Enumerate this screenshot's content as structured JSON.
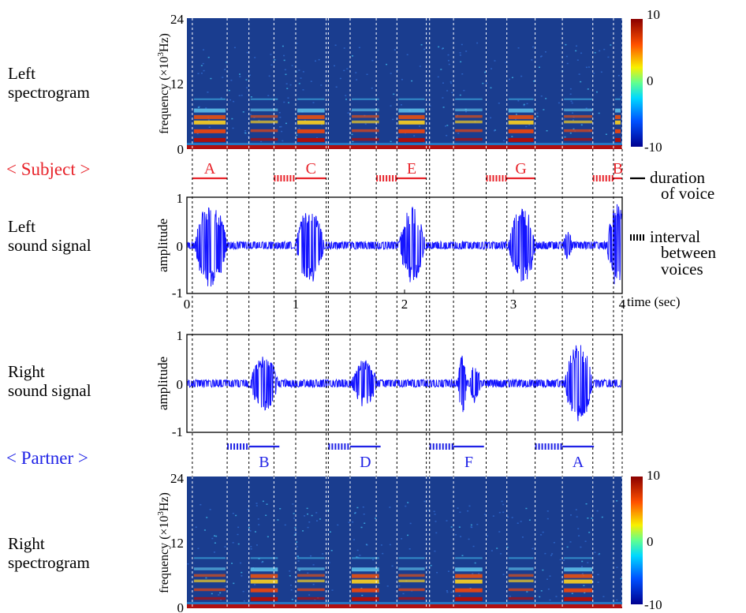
{
  "labels": {
    "left_spectrogram": [
      "Left",
      "spectrogram"
    ],
    "subject": "< Subject >",
    "left_sound_signal": [
      "Left",
      "sound signal"
    ],
    "right_sound_signal": [
      "Right",
      "sound signal"
    ],
    "partner": "< Partner >",
    "right_spectrogram": [
      "Right",
      "spectrogram"
    ]
  },
  "legend": {
    "duration": [
      "duration",
      "of voice"
    ],
    "interval": [
      "interval",
      "between",
      "voices"
    ]
  },
  "axes": {
    "freq_label_prefix": "frequency (×10",
    "freq_label_sup": "3",
    "freq_label_suffix": "Hz)",
    "freq_ticks": [
      "24",
      "12",
      "0"
    ],
    "amp_label": "amplitude",
    "amp_ticks": [
      "1",
      "0",
      "-1"
    ],
    "time_ticks": [
      "0",
      "1",
      "2",
      "3",
      "4"
    ],
    "time_label": "time (sec)",
    "colorbar_ticks": [
      "10",
      "0",
      "-10"
    ]
  },
  "colors": {
    "subject": "#e8232a",
    "partner": "#1f22e6",
    "signal": "#1414ff",
    "spec_bg": "#1a3d8f"
  },
  "chart_data": {
    "type": "diagram",
    "time_range": [
      0,
      4
    ],
    "frequency_range_khz": [
      0,
      24
    ],
    "amplitude_range": [
      -1,
      1
    ],
    "colorbar_range": [
      -10,
      10
    ],
    "subject_voices": [
      {
        "label": "A",
        "start": 0.05,
        "end": 0.37
      },
      {
        "label": "C",
        "start": 1.0,
        "end": 1.28
      },
      {
        "label": "E",
        "start": 1.93,
        "end": 2.2
      },
      {
        "label": "G",
        "start": 2.94,
        "end": 3.2
      },
      {
        "label": "B",
        "start": 3.92,
        "end": 4.0
      }
    ],
    "subject_intervals": [
      {
        "start": 0.8,
        "end": 1.0
      },
      {
        "start": 1.74,
        "end": 1.93
      },
      {
        "start": 2.75,
        "end": 2.94
      },
      {
        "start": 3.73,
        "end": 3.92
      }
    ],
    "partner_voices": [
      {
        "label": "B",
        "start": 0.57,
        "end": 0.85
      },
      {
        "label": "D",
        "start": 1.5,
        "end": 1.78
      },
      {
        "label": "F",
        "start": 2.45,
        "end": 2.73
      },
      {
        "label": "A",
        "start": 3.45,
        "end": 3.74
      }
    ],
    "partner_intervals": [
      {
        "start": 0.37,
        "end": 0.57
      },
      {
        "start": 1.3,
        "end": 1.5
      },
      {
        "start": 2.23,
        "end": 2.45
      },
      {
        "start": 3.2,
        "end": 3.45
      }
    ],
    "left_signal_bursts": [
      {
        "center": 0.22,
        "width": 0.3,
        "amp": 0.95
      },
      {
        "center": 1.13,
        "width": 0.26,
        "amp": 0.82
      },
      {
        "center": 2.07,
        "width": 0.24,
        "amp": 0.82
      },
      {
        "center": 3.08,
        "width": 0.25,
        "amp": 0.85
      },
      {
        "center": 3.5,
        "width": 0.09,
        "amp": 0.3
      },
      {
        "center": 3.95,
        "width": 0.18,
        "amp": 0.9
      }
    ],
    "right_signal_bursts": [
      {
        "center": 0.71,
        "width": 0.26,
        "amp": 0.6
      },
      {
        "center": 1.63,
        "width": 0.24,
        "amp": 0.5
      },
      {
        "center": 2.53,
        "width": 0.08,
        "amp": 0.65
      },
      {
        "center": 2.65,
        "width": 0.1,
        "amp": 0.45
      },
      {
        "center": 3.6,
        "width": 0.26,
        "amp": 0.85
      }
    ],
    "dotted_guides_time": [
      0.05,
      0.37,
      0.57,
      0.8,
      1.0,
      1.28,
      1.3,
      1.5,
      1.74,
      1.93,
      2.2,
      2.23,
      2.45,
      2.75,
      2.94,
      3.2,
      3.45,
      3.73,
      3.92,
      4.0
    ]
  }
}
